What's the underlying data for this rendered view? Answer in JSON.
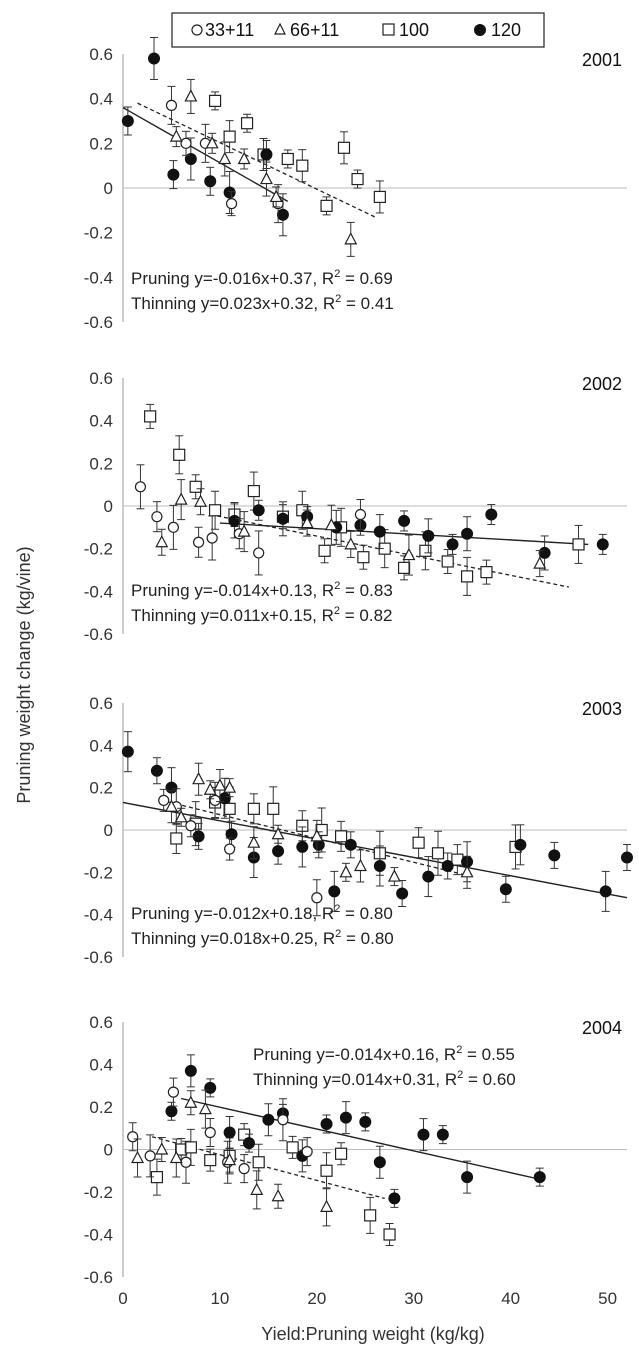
{
  "chart_data": {
    "type": "scatter",
    "xlabel": "Yield:Pruning weight (kg/kg)",
    "ylabel_part1": "Pruning weight",
    "ylabel_part2": "change (kg/vine)",
    "xlim": [
      0,
      52
    ],
    "ylim": [
      -0.6,
      0.6
    ],
    "xticks": [
      "0",
      "10",
      "20",
      "30",
      "40",
      "50"
    ],
    "yticks": [
      "0.6",
      "0.4",
      "0.2",
      "0",
      "-0.2",
      "-0.4",
      "-0.6"
    ],
    "legend": [
      {
        "name": "33+11",
        "marker": "open-circle"
      },
      {
        "name": "66+11",
        "marker": "open-triangle"
      },
      {
        "name": "100",
        "marker": "open-square"
      },
      {
        "name": "120",
        "marker": "filled-circle"
      }
    ],
    "panels": [
      {
        "year": "2001",
        "eq_pruning": "Pruning y=-0.016x+0.37, R",
        "eq_thinning": "Thinning y=0.023x+0.32, R",
        "r2_pruning": " = 0.69",
        "r2_thinning": " = 0.41",
        "eq_position": "bottom-left",
        "solid_line": [
          [
            0,
            0.36
          ],
          [
            17,
            -0.06
          ]
        ],
        "dashed_line": [
          [
            1.5,
            0.38
          ],
          [
            26,
            -0.13
          ]
        ],
        "series": {
          "33+11": [
            [
              5,
              0.37
            ],
            [
              6.5,
              0.2
            ],
            [
              8.5,
              0.2
            ],
            [
              11.2,
              -0.07
            ],
            [
              16,
              -0.07
            ]
          ],
          "66+11": [
            [
              5.5,
              0.23
            ],
            [
              7,
              0.41
            ],
            [
              9.2,
              0.2
            ],
            [
              10.5,
              0.13
            ],
            [
              12.5,
              0.13
            ],
            [
              14.8,
              0.04
            ],
            [
              15.8,
              -0.04
            ],
            [
              23.5,
              -0.23
            ]
          ],
          "100": [
            [
              9.5,
              0.39
            ],
            [
              11,
              0.23
            ],
            [
              12.8,
              0.29
            ],
            [
              14.5,
              0.15
            ],
            [
              17,
              0.13
            ],
            [
              18.5,
              0.1
            ],
            [
              21,
              -0.08
            ],
            [
              22.8,
              0.18
            ],
            [
              24.2,
              0.04
            ],
            [
              26.5,
              -0.04
            ]
          ],
          "120": [
            [
              0.5,
              0.3
            ],
            [
              3.2,
              0.58
            ],
            [
              5.2,
              0.06
            ],
            [
              7,
              0.13
            ],
            [
              9,
              0.03
            ],
            [
              11,
              -0.02
            ],
            [
              14.8,
              0.15
            ],
            [
              16.5,
              -0.12
            ]
          ]
        }
      },
      {
        "year": "2002",
        "eq_pruning": "Pruning y=-0.014x+0.13, R",
        "eq_thinning": "Thinning y=0.011x+0.15, R",
        "r2_pruning": " = 0.83",
        "r2_thinning": " = 0.82",
        "eq_position": "bottom-left",
        "solid_line": [
          [
            10,
            -0.08
          ],
          [
            48,
            -0.18
          ]
        ],
        "dashed_line": [
          [
            9,
            -0.04
          ],
          [
            46,
            -0.38
          ]
        ],
        "series": {
          "33+11": [
            [
              1.8,
              0.09
            ],
            [
              3.5,
              -0.05
            ],
            [
              5.2,
              -0.1
            ],
            [
              7.8,
              -0.17
            ],
            [
              9.2,
              -0.15
            ],
            [
              12,
              -0.13
            ],
            [
              14,
              -0.22
            ],
            [
              24.5,
              -0.04
            ]
          ],
          "66+11": [
            [
              4,
              -0.17
            ],
            [
              6,
              0.03
            ],
            [
              8,
              0.02
            ],
            [
              12.5,
              -0.12
            ],
            [
              19,
              -0.08
            ],
            [
              21.5,
              -0.09
            ],
            [
              23.5,
              -0.18
            ],
            [
              29.5,
              -0.23
            ],
            [
              43,
              -0.27
            ]
          ],
          "100": [
            [
              2.8,
              0.42
            ],
            [
              5.8,
              0.24
            ],
            [
              7.5,
              0.09
            ],
            [
              9.5,
              -0.02
            ],
            [
              11.5,
              -0.04
            ],
            [
              13.5,
              0.07
            ],
            [
              16.5,
              -0.05
            ],
            [
              18.5,
              -0.02
            ],
            [
              20.8,
              -0.21
            ],
            [
              22.5,
              -0.1
            ],
            [
              24.8,
              -0.24
            ],
            [
              27,
              -0.2
            ],
            [
              29,
              -0.29
            ],
            [
              31.2,
              -0.21
            ],
            [
              33.5,
              -0.26
            ],
            [
              35.5,
              -0.33
            ],
            [
              37.5,
              -0.31
            ],
            [
              47,
              -0.18
            ]
          ],
          "120": [
            [
              11.5,
              -0.07
            ],
            [
              14,
              -0.02
            ],
            [
              16.5,
              -0.06
            ],
            [
              19,
              -0.05
            ],
            [
              22,
              -0.1
            ],
            [
              24.5,
              -0.09
            ],
            [
              26.5,
              -0.12
            ],
            [
              29,
              -0.07
            ],
            [
              31.5,
              -0.14
            ],
            [
              34,
              -0.18
            ],
            [
              35.5,
              -0.13
            ],
            [
              38,
              -0.04
            ],
            [
              43.5,
              -0.22
            ],
            [
              49.5,
              -0.18
            ]
          ]
        }
      },
      {
        "year": "2003",
        "eq_pruning": "Pruning y=-0.012x+0.18, R",
        "eq_thinning": "Thinning y=0.018x+0.25, R",
        "r2_pruning": " = 0.80",
        "r2_thinning": " = 0.80",
        "eq_position": "bottom-left",
        "solid_line": [
          [
            0,
            0.13
          ],
          [
            52,
            -0.32
          ]
        ],
        "dashed_line": [
          [
            4,
            0.14
          ],
          [
            36,
            -0.22
          ]
        ],
        "series": {
          "33+11": [
            [
              4.2,
              0.14
            ],
            [
              5.5,
              0.11
            ],
            [
              7,
              0.02
            ],
            [
              9.5,
              0.14
            ],
            [
              11,
              -0.09
            ],
            [
              20,
              -0.32
            ]
          ],
          "66+11": [
            [
              5,
              0.11
            ],
            [
              6,
              0.06
            ],
            [
              7.8,
              0.24
            ],
            [
              9,
              0.19
            ],
            [
              10,
              0.21
            ],
            [
              11,
              0.2
            ],
            [
              13.5,
              -0.06
            ],
            [
              16,
              -0.02
            ],
            [
              20,
              -0.03
            ],
            [
              23,
              -0.2
            ],
            [
              24.5,
              -0.17
            ],
            [
              28,
              -0.22
            ],
            [
              35.5,
              -0.2
            ]
          ],
          "100": [
            [
              5.5,
              -0.04
            ],
            [
              7.5,
              0.03
            ],
            [
              9.5,
              0.13
            ],
            [
              11,
              0.1
            ],
            [
              13.5,
              0.1
            ],
            [
              15.5,
              0.1
            ],
            [
              18.5,
              0.02
            ],
            [
              20.5,
              0
            ],
            [
              22.5,
              -0.03
            ],
            [
              26.5,
              -0.11
            ],
            [
              30.5,
              -0.06
            ],
            [
              32.5,
              -0.11
            ],
            [
              34.5,
              -0.14
            ],
            [
              40.5,
              -0.08
            ]
          ],
          "120": [
            [
              0.5,
              0.37
            ],
            [
              3.5,
              0.28
            ],
            [
              5,
              0.2
            ],
            [
              7.8,
              -0.03
            ],
            [
              10.5,
              0.15
            ],
            [
              11.2,
              -0.02
            ],
            [
              13.5,
              -0.13
            ],
            [
              16,
              -0.1
            ],
            [
              18.5,
              -0.08
            ],
            [
              20.2,
              -0.07
            ],
            [
              21.8,
              -0.29
            ],
            [
              23.5,
              -0.07
            ],
            [
              26.5,
              -0.17
            ],
            [
              28.8,
              -0.3
            ],
            [
              31.5,
              -0.22
            ],
            [
              33.5,
              -0.17
            ],
            [
              35.5,
              -0.15
            ],
            [
              39.5,
              -0.28
            ],
            [
              41,
              -0.07
            ],
            [
              44.5,
              -0.12
            ],
            [
              49.8,
              -0.29
            ],
            [
              52,
              -0.13
            ]
          ]
        }
      },
      {
        "year": "2004",
        "eq_pruning": "Pruning y=-0.014x+0.16, R",
        "eq_thinning": "Thinning y=0.014x+0.31, R",
        "r2_pruning": " = 0.55",
        "r2_thinning": " = 0.60",
        "eq_position": "top-right",
        "solid_line": [
          [
            6,
            0.24
          ],
          [
            43,
            -0.14
          ]
        ],
        "dashed_line": [
          [
            3,
            0.06
          ],
          [
            27,
            -0.23
          ]
        ],
        "series": {
          "33+11": [
            [
              1,
              0.06
            ],
            [
              2.8,
              -0.03
            ],
            [
              5.2,
              0.27
            ],
            [
              6.5,
              -0.06
            ],
            [
              9,
              0.08
            ],
            [
              10.8,
              -0.06
            ],
            [
              12.5,
              -0.09
            ],
            [
              16.5,
              0.14
            ],
            [
              19,
              -0.01
            ]
          ],
          "66+11": [
            [
              1.5,
              -0.04
            ],
            [
              4,
              0
            ],
            [
              5.5,
              -0.04
            ],
            [
              7,
              0.22
            ],
            [
              8.5,
              0.19
            ],
            [
              11,
              -0.05
            ],
            [
              13.8,
              -0.19
            ],
            [
              16,
              -0.22
            ],
            [
              21,
              -0.27
            ]
          ],
          "100": [
            [
              3.5,
              -0.13
            ],
            [
              6,
              0
            ],
            [
              7,
              0.01
            ],
            [
              9,
              -0.05
            ],
            [
              11,
              -0.03
            ],
            [
              12.5,
              0.07
            ],
            [
              14,
              -0.06
            ],
            [
              17.5,
              0.01
            ],
            [
              21,
              -0.1
            ],
            [
              22.5,
              -0.02
            ],
            [
              25.5,
              -0.31
            ],
            [
              27.5,
              -0.4
            ]
          ],
          "120": [
            [
              5,
              0.18
            ],
            [
              7,
              0.37
            ],
            [
              9,
              0.29
            ],
            [
              11,
              0.08
            ],
            [
              13,
              0.03
            ],
            [
              15,
              0.14
            ],
            [
              16.5,
              0.17
            ],
            [
              18.5,
              -0.03
            ],
            [
              21,
              0.12
            ],
            [
              23,
              0.15
            ],
            [
              25,
              0.13
            ],
            [
              26.5,
              -0.06
            ],
            [
              28,
              -0.23
            ],
            [
              31,
              0.07
            ],
            [
              33,
              0.07
            ],
            [
              35.5,
              -0.13
            ],
            [
              43,
              -0.13
            ]
          ]
        }
      }
    ]
  }
}
